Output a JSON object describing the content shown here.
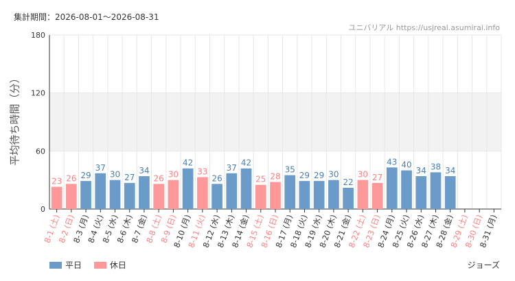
{
  "header": {
    "period_label": "集計期間：2026-08-01〜2026-08-31",
    "source_text": "ユニバリアル  https://usjreal.asumirai.info"
  },
  "footer": {
    "attraction": "ジョーズ"
  },
  "colors": {
    "weekday": "#6b9bc8",
    "holiday": "#ff9999",
    "weekday_text": "#4a7fb5",
    "holiday_text": "#ff7f7f",
    "band": "#f2f2f2",
    "grid": "#e6e6e6"
  },
  "chart_data": {
    "type": "bar",
    "ylabel": "平均待ち時間（分）",
    "ylim": [
      0,
      180
    ],
    "yticks": [
      0,
      60,
      120,
      180
    ],
    "legend": [
      {
        "label": "平日",
        "kind": "weekday"
      },
      {
        "label": "休日",
        "kind": "holiday"
      }
    ],
    "categories": [
      "8-1 (土)",
      "8-2 (日)",
      "8-3 (月)",
      "8-4 (火)",
      "8-5 (水)",
      "8-6 (木)",
      "8-7 (金)",
      "8-8 (土)",
      "8-9 (日)",
      "8-10 (月)",
      "8-11 (火)",
      "8-12 (水)",
      "8-13 (木)",
      "8-14 (金)",
      "8-15 (土)",
      "8-16 (日)",
      "8-17 (月)",
      "8-18 (火)",
      "8-19 (水)",
      "8-20 (木)",
      "8-21 (金)",
      "8-22 (土)",
      "8-23 (日)",
      "8-24 (月)",
      "8-25 (火)",
      "8-26 (水)",
      "8-27 (木)",
      "8-28 (金)",
      "8-29 (土)",
      "8-30 (日)",
      "8-31 (月)"
    ],
    "values": [
      23,
      26,
      29,
      37,
      30,
      27,
      34,
      26,
      30,
      42,
      33,
      26,
      37,
      42,
      25,
      28,
      35,
      29,
      29,
      30,
      22,
      30,
      27,
      43,
      40,
      34,
      38,
      34,
      null,
      null,
      null
    ],
    "holiday": [
      true,
      true,
      false,
      false,
      false,
      false,
      false,
      true,
      true,
      false,
      true,
      false,
      false,
      false,
      true,
      true,
      false,
      false,
      false,
      false,
      false,
      true,
      true,
      false,
      false,
      false,
      false,
      false,
      true,
      true,
      false
    ]
  }
}
